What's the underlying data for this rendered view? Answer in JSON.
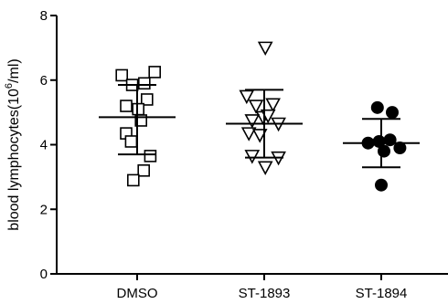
{
  "chart_data": {
    "type": "scatter",
    "title": "",
    "xlabel": "",
    "ylabel": "blood lymphocytes(10^6/ml)",
    "ylabel_parts": {
      "pre": "blood lymphocytes(10",
      "sup": "6",
      "post": "/ml)"
    },
    "ylim": [
      0,
      8
    ],
    "yticks": [
      "0",
      "2",
      "4",
      "6",
      "8"
    ],
    "categories": [
      "DMSO",
      "ST-1893",
      "ST-1894"
    ],
    "grid": false,
    "series": [
      {
        "category": "DMSO",
        "marker": "open-square",
        "points": [
          {
            "x": -0.28,
            "y": 6.15
          },
          {
            "x": -0.09,
            "y": 5.85
          },
          {
            "x": 0.13,
            "y": 5.9
          },
          {
            "x": 0.32,
            "y": 6.25
          },
          {
            "x": 0.18,
            "y": 5.4
          },
          {
            "x": -0.2,
            "y": 5.2
          },
          {
            "x": 0.02,
            "y": 5.1
          },
          {
            "x": 0.07,
            "y": 4.75
          },
          {
            "x": -0.2,
            "y": 4.35
          },
          {
            "x": -0.11,
            "y": 4.1
          },
          {
            "x": 0.24,
            "y": 3.65
          },
          {
            "x": 0.12,
            "y": 3.2
          },
          {
            "x": -0.07,
            "y": 2.9
          }
        ],
        "mean": 4.85,
        "sd_low": 3.7,
        "sd_high": 5.85
      },
      {
        "category": "ST-1893",
        "marker": "open-triangle-down",
        "points": [
          {
            "x": 0.02,
            "y": 7.0
          },
          {
            "x": -0.32,
            "y": 5.5
          },
          {
            "x": -0.15,
            "y": 5.2
          },
          {
            "x": 0.16,
            "y": 5.25
          },
          {
            "x": -0.02,
            "y": 4.85
          },
          {
            "x": 0.07,
            "y": 4.9
          },
          {
            "x": -0.22,
            "y": 4.75
          },
          {
            "x": 0.26,
            "y": 4.65
          },
          {
            "x": -0.28,
            "y": 4.35
          },
          {
            "x": -0.08,
            "y": 4.3
          },
          {
            "x": -0.22,
            "y": 3.65
          },
          {
            "x": 0.26,
            "y": 3.6
          },
          {
            "x": 0.02,
            "y": 3.3
          }
        ],
        "mean": 4.65,
        "sd_low": 3.6,
        "sd_high": 5.7
      },
      {
        "category": "ST-1894",
        "marker": "filled-circle",
        "points": [
          {
            "x": -0.07,
            "y": 5.15
          },
          {
            "x": 0.2,
            "y": 5.0
          },
          {
            "x": -0.24,
            "y": 4.05
          },
          {
            "x": -0.04,
            "y": 4.1
          },
          {
            "x": 0.16,
            "y": 4.15
          },
          {
            "x": 0.34,
            "y": 3.9
          },
          {
            "x": 0.05,
            "y": 3.8
          },
          {
            "x": 0.0,
            "y": 2.75
          }
        ],
        "mean": 4.05,
        "sd_low": 3.3,
        "sd_high": 4.8
      }
    ]
  }
}
